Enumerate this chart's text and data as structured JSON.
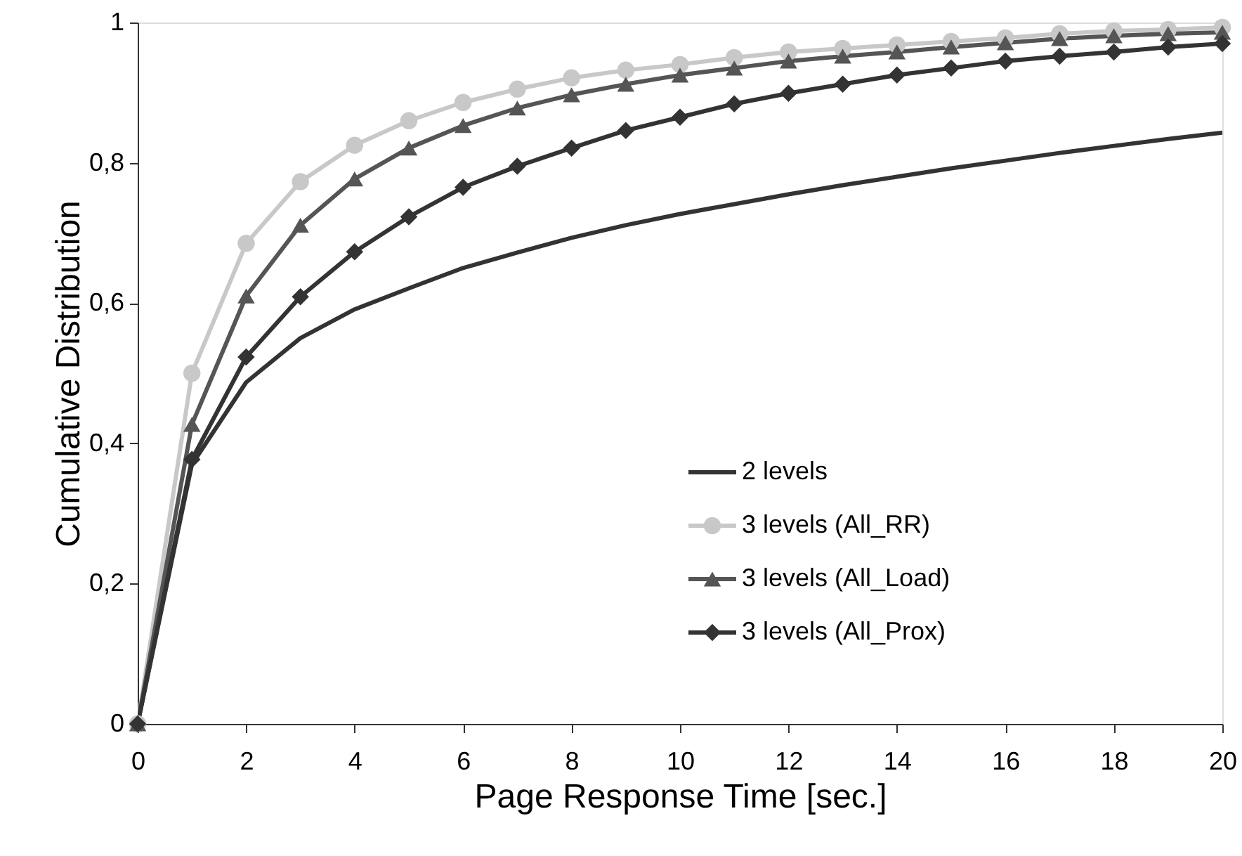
{
  "chart_data": {
    "type": "line",
    "xlabel": "Page Response Time [sec.]",
    "ylabel": "Cumulative Distribution",
    "x": [
      0,
      1,
      2,
      3,
      4,
      5,
      6,
      7,
      8,
      9,
      10,
      11,
      12,
      13,
      14,
      15,
      16,
      17,
      18,
      19,
      20
    ],
    "series": [
      {
        "name": "2 levels",
        "color": "#333333",
        "marker": "none",
        "values": [
          0,
          0.37,
          0.487,
          0.55,
          0.591,
          0.621,
          0.65,
          0.672,
          0.693,
          0.711,
          0.727,
          0.741,
          0.755,
          0.768,
          0.78,
          0.792,
          0.803,
          0.814,
          0.824,
          0.834,
          0.843
        ]
      },
      {
        "name": "3 levels (All_RR)",
        "color": "#c8c8c8",
        "marker": "circle",
        "values": [
          0,
          0.5,
          0.685,
          0.773,
          0.825,
          0.86,
          0.886,
          0.905,
          0.921,
          0.932,
          0.94,
          0.95,
          0.958,
          0.963,
          0.968,
          0.973,
          0.978,
          0.984,
          0.988,
          0.99,
          0.993
        ]
      },
      {
        "name": "3 levels (All_Load)",
        "color": "#555555",
        "marker": "triangle",
        "values": [
          0,
          0.427,
          0.61,
          0.711,
          0.777,
          0.821,
          0.853,
          0.878,
          0.897,
          0.912,
          0.925,
          0.935,
          0.945,
          0.952,
          0.958,
          0.965,
          0.971,
          0.977,
          0.981,
          0.984,
          0.986
        ]
      },
      {
        "name": "3 levels (All_Prox)",
        "color": "#333333",
        "marker": "diamond",
        "values": [
          0,
          0.377,
          0.523,
          0.609,
          0.673,
          0.723,
          0.765,
          0.795,
          0.821,
          0.846,
          0.865,
          0.884,
          0.899,
          0.912,
          0.925,
          0.935,
          0.945,
          0.952,
          0.958,
          0.965,
          0.97
        ]
      }
    ],
    "xlim": [
      0,
      20
    ],
    "xticks": [
      0,
      2,
      4,
      6,
      8,
      10,
      12,
      14,
      16,
      18,
      20
    ],
    "ylim": [
      0,
      1
    ],
    "yticks": [
      0,
      {
        "value": 0.2,
        "label": "0,2"
      },
      {
        "value": 0.4,
        "label": "0,4"
      },
      {
        "value": 0.6,
        "label": "0,6"
      },
      {
        "value": 0.8,
        "label": "0,8"
      },
      1
    ],
    "grid": false,
    "legend": "right",
    "line_style": "solid"
  }
}
